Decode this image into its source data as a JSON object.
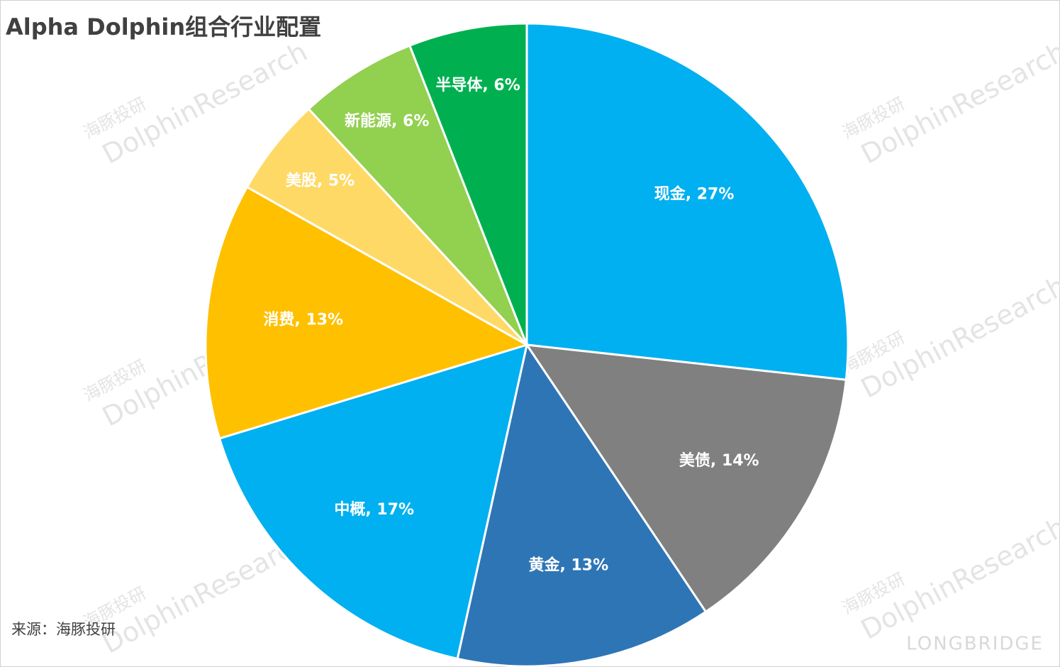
{
  "chart_data": {
    "type": "pie",
    "title": "Alpha Dolphin组合行业配置",
    "values": [
      27,
      14,
      13,
      17,
      13,
      5,
      6,
      6
    ],
    "value_labels": [
      "现金, 27%",
      "美债, 14%",
      "黄金, 13%",
      "中概, 17%",
      "消费, 13%",
      "美股, 5%",
      "新能源, 6%",
      "半导体, 6%"
    ],
    "colors": [
      "#00b0f0",
      "#808080",
      "#2e75b6",
      "#00b0f0",
      "#ffc000",
      "#ffd966",
      "#92d050",
      "#00b050"
    ],
    "source": "来源：海豚投研",
    "watermark": [
      "海豚投研",
      "DolphinResearch"
    ],
    "brand": "LONGBRIDGE"
  }
}
